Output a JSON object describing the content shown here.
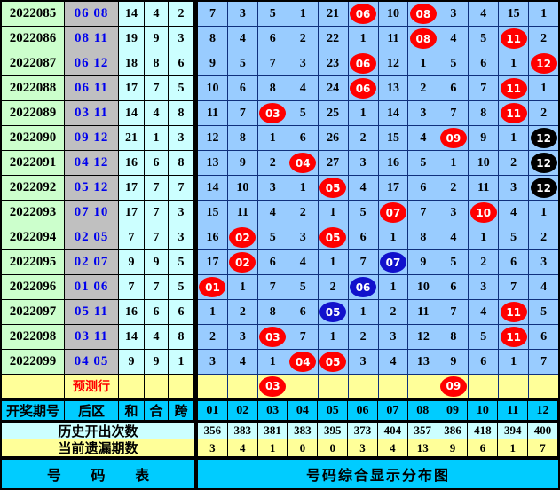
{
  "colors": {
    "red_marker": "#ff0000",
    "blue_marker": "#1111cc",
    "black_marker": "#000000",
    "grid_bg": "#99ccff",
    "period_bg": "#ccffcc",
    "back_bg": "#c0c0c0",
    "stat_bg": "#ccffff",
    "yellow_bg": "#ffff99",
    "cyan_bg": "#00ccff"
  },
  "header": {
    "period_label": "开奖期号",
    "back_label": "后区",
    "sum_label": "和",
    "combo_label": "合",
    "span_label": "跨",
    "columns": [
      "01",
      "02",
      "03",
      "04",
      "05",
      "06",
      "07",
      "08",
      "09",
      "10",
      "11",
      "12"
    ]
  },
  "rows": [
    {
      "period": "2022085",
      "back": "06 08",
      "sum": "14",
      "combo": "4",
      "span": "2",
      "cells": [
        {
          "v": "7"
        },
        {
          "v": "3"
        },
        {
          "v": "5"
        },
        {
          "v": "1"
        },
        {
          "v": "21"
        },
        {
          "v": "06",
          "m": "red"
        },
        {
          "v": "10"
        },
        {
          "v": "08",
          "m": "red"
        },
        {
          "v": "3"
        },
        {
          "v": "4"
        },
        {
          "v": "15"
        },
        {
          "v": "1"
        }
      ]
    },
    {
      "period": "2022086",
      "back": "08 11",
      "sum": "19",
      "combo": "9",
      "span": "3",
      "cells": [
        {
          "v": "8"
        },
        {
          "v": "4"
        },
        {
          "v": "6"
        },
        {
          "v": "2"
        },
        {
          "v": "22"
        },
        {
          "v": "1"
        },
        {
          "v": "11"
        },
        {
          "v": "08",
          "m": "red"
        },
        {
          "v": "4"
        },
        {
          "v": "5"
        },
        {
          "v": "11",
          "m": "red"
        },
        {
          "v": "2"
        }
      ]
    },
    {
      "period": "2022087",
      "back": "06 12",
      "sum": "18",
      "combo": "8",
      "span": "6",
      "cells": [
        {
          "v": "9"
        },
        {
          "v": "5"
        },
        {
          "v": "7"
        },
        {
          "v": "3"
        },
        {
          "v": "23"
        },
        {
          "v": "06",
          "m": "red"
        },
        {
          "v": "12"
        },
        {
          "v": "1"
        },
        {
          "v": "5"
        },
        {
          "v": "6"
        },
        {
          "v": "1"
        },
        {
          "v": "12",
          "m": "red"
        }
      ]
    },
    {
      "period": "2022088",
      "back": "06 11",
      "sum": "17",
      "combo": "7",
      "span": "5",
      "cells": [
        {
          "v": "10"
        },
        {
          "v": "6"
        },
        {
          "v": "8"
        },
        {
          "v": "4"
        },
        {
          "v": "24"
        },
        {
          "v": "06",
          "m": "red"
        },
        {
          "v": "13"
        },
        {
          "v": "2"
        },
        {
          "v": "6"
        },
        {
          "v": "7"
        },
        {
          "v": "11",
          "m": "red"
        },
        {
          "v": "1"
        }
      ]
    },
    {
      "period": "2022089",
      "back": "03 11",
      "sum": "14",
      "combo": "4",
      "span": "8",
      "cells": [
        {
          "v": "11"
        },
        {
          "v": "7"
        },
        {
          "v": "03",
          "m": "red"
        },
        {
          "v": "5"
        },
        {
          "v": "25"
        },
        {
          "v": "1"
        },
        {
          "v": "14"
        },
        {
          "v": "3"
        },
        {
          "v": "7"
        },
        {
          "v": "8"
        },
        {
          "v": "11",
          "m": "red"
        },
        {
          "v": "2"
        }
      ]
    },
    {
      "period": "2022090",
      "back": "09 12",
      "sum": "21",
      "combo": "1",
      "span": "3",
      "cells": [
        {
          "v": "12"
        },
        {
          "v": "8"
        },
        {
          "v": "1"
        },
        {
          "v": "6"
        },
        {
          "v": "26"
        },
        {
          "v": "2"
        },
        {
          "v": "15"
        },
        {
          "v": "4"
        },
        {
          "v": "09",
          "m": "red"
        },
        {
          "v": "9"
        },
        {
          "v": "1"
        },
        {
          "v": "12",
          "m": "black"
        }
      ]
    },
    {
      "period": "2022091",
      "back": "04 12",
      "sum": "16",
      "combo": "6",
      "span": "8",
      "cells": [
        {
          "v": "13"
        },
        {
          "v": "9"
        },
        {
          "v": "2"
        },
        {
          "v": "04",
          "m": "red"
        },
        {
          "v": "27"
        },
        {
          "v": "3"
        },
        {
          "v": "16"
        },
        {
          "v": "5"
        },
        {
          "v": "1"
        },
        {
          "v": "10"
        },
        {
          "v": "2"
        },
        {
          "v": "12",
          "m": "black"
        }
      ]
    },
    {
      "period": "2022092",
      "back": "05 12",
      "sum": "17",
      "combo": "7",
      "span": "7",
      "cells": [
        {
          "v": "14"
        },
        {
          "v": "10"
        },
        {
          "v": "3"
        },
        {
          "v": "1"
        },
        {
          "v": "05",
          "m": "red"
        },
        {
          "v": "4"
        },
        {
          "v": "17"
        },
        {
          "v": "6"
        },
        {
          "v": "2"
        },
        {
          "v": "11"
        },
        {
          "v": "3"
        },
        {
          "v": "12",
          "m": "black"
        }
      ]
    },
    {
      "period": "2022093",
      "back": "07 10",
      "sum": "17",
      "combo": "7",
      "span": "3",
      "cells": [
        {
          "v": "15"
        },
        {
          "v": "11"
        },
        {
          "v": "4"
        },
        {
          "v": "2"
        },
        {
          "v": "1"
        },
        {
          "v": "5"
        },
        {
          "v": "07",
          "m": "red"
        },
        {
          "v": "7"
        },
        {
          "v": "3"
        },
        {
          "v": "10",
          "m": "red"
        },
        {
          "v": "4"
        },
        {
          "v": "1"
        }
      ]
    },
    {
      "period": "2022094",
      "back": "02 05",
      "sum": "7",
      "combo": "7",
      "span": "3",
      "cells": [
        {
          "v": "16"
        },
        {
          "v": "02",
          "m": "red"
        },
        {
          "v": "5"
        },
        {
          "v": "3"
        },
        {
          "v": "05",
          "m": "red"
        },
        {
          "v": "6"
        },
        {
          "v": "1"
        },
        {
          "v": "8"
        },
        {
          "v": "4"
        },
        {
          "v": "1"
        },
        {
          "v": "5"
        },
        {
          "v": "2"
        }
      ]
    },
    {
      "period": "2022095",
      "back": "02 07",
      "sum": "9",
      "combo": "9",
      "span": "5",
      "cells": [
        {
          "v": "17"
        },
        {
          "v": "02",
          "m": "red"
        },
        {
          "v": "6"
        },
        {
          "v": "4"
        },
        {
          "v": "1"
        },
        {
          "v": "7"
        },
        {
          "v": "07",
          "m": "blue"
        },
        {
          "v": "9"
        },
        {
          "v": "5"
        },
        {
          "v": "2"
        },
        {
          "v": "6"
        },
        {
          "v": "3"
        }
      ]
    },
    {
      "period": "2022096",
      "back": "01 06",
      "sum": "7",
      "combo": "7",
      "span": "5",
      "cells": [
        {
          "v": "01",
          "m": "red"
        },
        {
          "v": "1"
        },
        {
          "v": "7"
        },
        {
          "v": "5"
        },
        {
          "v": "2"
        },
        {
          "v": "06",
          "m": "blue"
        },
        {
          "v": "1"
        },
        {
          "v": "10"
        },
        {
          "v": "6"
        },
        {
          "v": "3"
        },
        {
          "v": "7"
        },
        {
          "v": "4"
        }
      ]
    },
    {
      "period": "2022097",
      "back": "05 11",
      "sum": "16",
      "combo": "6",
      "span": "6",
      "cells": [
        {
          "v": "1"
        },
        {
          "v": "2"
        },
        {
          "v": "8"
        },
        {
          "v": "6"
        },
        {
          "v": "05",
          "m": "blue"
        },
        {
          "v": "1"
        },
        {
          "v": "2"
        },
        {
          "v": "11"
        },
        {
          "v": "7"
        },
        {
          "v": "4"
        },
        {
          "v": "11",
          "m": "red"
        },
        {
          "v": "5"
        }
      ]
    },
    {
      "period": "2022098",
      "back": "03 11",
      "sum": "14",
      "combo": "4",
      "span": "8",
      "cells": [
        {
          "v": "2"
        },
        {
          "v": "3"
        },
        {
          "v": "03",
          "m": "red"
        },
        {
          "v": "7"
        },
        {
          "v": "1"
        },
        {
          "v": "2"
        },
        {
          "v": "3"
        },
        {
          "v": "12"
        },
        {
          "v": "8"
        },
        {
          "v": "5"
        },
        {
          "v": "11",
          "m": "red"
        },
        {
          "v": "6"
        }
      ]
    },
    {
      "period": "2022099",
      "back": "04 05",
      "sum": "9",
      "combo": "9",
      "span": "1",
      "cells": [
        {
          "v": "3"
        },
        {
          "v": "4"
        },
        {
          "v": "1"
        },
        {
          "v": "04",
          "m": "red"
        },
        {
          "v": "05",
          "m": "red"
        },
        {
          "v": "3"
        },
        {
          "v": "4"
        },
        {
          "v": "13"
        },
        {
          "v": "9"
        },
        {
          "v": "6"
        },
        {
          "v": "1"
        },
        {
          "v": "7"
        }
      ]
    }
  ],
  "prediction": {
    "label": "预测行",
    "cells": [
      {
        "v": ""
      },
      {
        "v": ""
      },
      {
        "v": "03",
        "m": "red"
      },
      {
        "v": ""
      },
      {
        "v": ""
      },
      {
        "v": ""
      },
      {
        "v": ""
      },
      {
        "v": ""
      },
      {
        "v": "09",
        "m": "red"
      },
      {
        "v": ""
      },
      {
        "v": ""
      },
      {
        "v": ""
      }
    ]
  },
  "history": {
    "label": "历史开出次数",
    "values": [
      "356",
      "383",
      "381",
      "383",
      "395",
      "373",
      "404",
      "357",
      "386",
      "418",
      "394",
      "400"
    ]
  },
  "miss": {
    "label": "当前遗漏期数",
    "values": [
      "3",
      "4",
      "1",
      "0",
      "0",
      "3",
      "4",
      "13",
      "9",
      "6",
      "1",
      "7"
    ]
  },
  "footer": {
    "left_label": "号 码 表",
    "right_label": "号码综合显示分布图"
  },
  "chart_data": {
    "type": "table",
    "title": "号码综合显示分布图",
    "columns": [
      "01",
      "02",
      "03",
      "04",
      "05",
      "06",
      "07",
      "08",
      "09",
      "10",
      "11",
      "12"
    ],
    "draws": [
      {
        "period": "2022085",
        "back_numbers": [
          6,
          8
        ],
        "sum": 14,
        "combo": 4,
        "span": 2
      },
      {
        "period": "2022086",
        "back_numbers": [
          8,
          11
        ],
        "sum": 19,
        "combo": 9,
        "span": 3
      },
      {
        "period": "2022087",
        "back_numbers": [
          6,
          12
        ],
        "sum": 18,
        "combo": 8,
        "span": 6
      },
      {
        "period": "2022088",
        "back_numbers": [
          6,
          11
        ],
        "sum": 17,
        "combo": 7,
        "span": 5
      },
      {
        "period": "2022089",
        "back_numbers": [
          3,
          11
        ],
        "sum": 14,
        "combo": 4,
        "span": 8
      },
      {
        "period": "2022090",
        "back_numbers": [
          9,
          12
        ],
        "sum": 21,
        "combo": 1,
        "span": 3
      },
      {
        "period": "2022091",
        "back_numbers": [
          4,
          12
        ],
        "sum": 16,
        "combo": 6,
        "span": 8
      },
      {
        "period": "2022092",
        "back_numbers": [
          5,
          12
        ],
        "sum": 17,
        "combo": 7,
        "span": 7
      },
      {
        "period": "2022093",
        "back_numbers": [
          7,
          10
        ],
        "sum": 17,
        "combo": 7,
        "span": 3
      },
      {
        "period": "2022094",
        "back_numbers": [
          2,
          5
        ],
        "sum": 7,
        "combo": 7,
        "span": 3
      },
      {
        "period": "2022095",
        "back_numbers": [
          2,
          7
        ],
        "sum": 9,
        "combo": 9,
        "span": 5
      },
      {
        "period": "2022096",
        "back_numbers": [
          1,
          6
        ],
        "sum": 7,
        "combo": 7,
        "span": 5
      },
      {
        "period": "2022097",
        "back_numbers": [
          5,
          11
        ],
        "sum": 16,
        "combo": 6,
        "span": 6
      },
      {
        "period": "2022098",
        "back_numbers": [
          3,
          11
        ],
        "sum": 14,
        "combo": 4,
        "span": 8
      },
      {
        "period": "2022099",
        "back_numbers": [
          4,
          5
        ],
        "sum": 9,
        "combo": 9,
        "span": 1
      }
    ],
    "predicted_numbers": [
      3,
      9
    ],
    "history_counts": [
      356,
      383,
      381,
      383,
      395,
      373,
      404,
      357,
      386,
      418,
      394,
      400
    ],
    "current_miss": [
      3,
      4,
      1,
      0,
      0,
      3,
      4,
      13,
      9,
      6,
      1,
      7
    ]
  }
}
